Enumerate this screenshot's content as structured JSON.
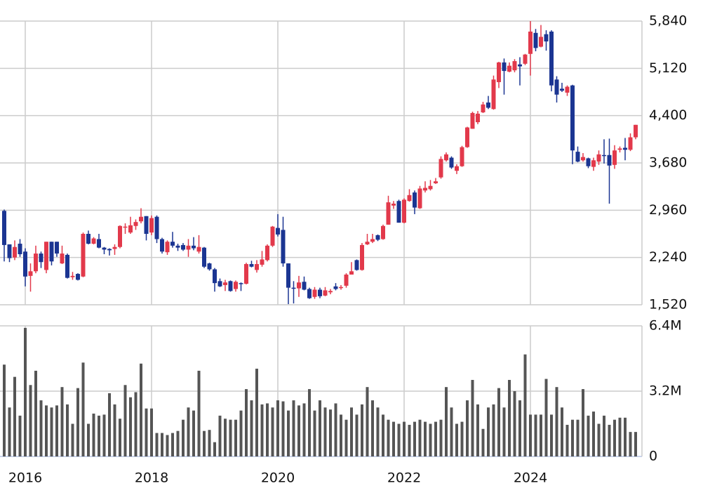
{
  "chart_data": [
    {
      "type": "candlestick",
      "open": [
        2950,
        2440,
        2240,
        2450,
        2330,
        1960,
        2030,
        2300,
        2050,
        2480,
        2480,
        2150,
        2280,
        1940,
        1990,
        1950,
        2600,
        2450,
        2520,
        2390,
        2370,
        2370,
        2400,
        2700,
        2620,
        2720,
        2790,
        2870,
        2620,
        2860,
        2520,
        2320,
        2480,
        2420,
        2430,
        2360,
        2420,
        2330,
        2390,
        2150,
        2060,
        1880,
        1820,
        1880,
        1760,
        1850,
        1840,
        2140,
        2050,
        2130,
        2200,
        2420,
        2690,
        2660,
        2150,
        1780,
        1770,
        1870,
        1760,
        1640,
        1750,
        1660,
        1710,
        1800,
        1780,
        1810,
        1980,
        2200,
        2050,
        2440,
        2480,
        2580,
        2520,
        2740,
        3030,
        3100,
        2770,
        3100,
        3230,
        2990,
        3260,
        3280,
        3370,
        3460,
        3720,
        3760,
        3560,
        3630,
        3920,
        4200,
        4300,
        4450,
        4600,
        4500,
        4910,
        5210,
        5070,
        5090,
        5180,
        5190,
        5340,
        5660,
        5450,
        5640,
        5680,
        4950,
        4810,
        4750,
        4860,
        3850,
        3720,
        3750,
        3620,
        3700,
        3800,
        3800,
        3650,
        3880,
        3910,
        3880,
        4070
      ],
      "high": [
        2970,
        2440,
        2500,
        2520,
        2380,
        2150,
        2420,
        2330,
        2480,
        2480,
        2480,
        2420,
        2300,
        2020,
        2000,
        2620,
        2650,
        2550,
        2600,
        2400,
        2380,
        2440,
        2730,
        2760,
        2860,
        2820,
        2990,
        2870,
        2880,
        2880,
        2540,
        2500,
        2630,
        2450,
        2460,
        2520,
        2550,
        2580,
        2400,
        2160,
        2080,
        1920,
        1900,
        1890,
        1890,
        1860,
        2160,
        2190,
        2200,
        2340,
        2440,
        2720,
        2900,
        2860,
        2150,
        1880,
        1960,
        1950,
        1780,
        1790,
        1780,
        1790,
        1760,
        1850,
        1820,
        2000,
        2170,
        2210,
        2460,
        2600,
        2600,
        2590,
        2740,
        3180,
        3100,
        3120,
        3140,
        3280,
        3260,
        3330,
        3400,
        3420,
        3450,
        3780,
        3840,
        3780,
        3660,
        3940,
        4230,
        4460,
        4470,
        4610,
        4700,
        5010,
        5220,
        5270,
        5210,
        5260,
        5290,
        5340,
        5840,
        5720,
        5780,
        5700,
        5700,
        5000,
        4900,
        4860,
        4870,
        3930,
        3830,
        3760,
        3760,
        3870,
        4040,
        4050,
        3950,
        3930,
        4060,
        4130,
        4260
      ],
      "low": [
        2180,
        2170,
        2200,
        2250,
        1800,
        1720,
        2000,
        2080,
        2000,
        2120,
        2250,
        2140,
        1920,
        1900,
        1890,
        1940,
        2440,
        2440,
        2380,
        2290,
        2270,
        2280,
        2380,
        2600,
        2600,
        2660,
        2760,
        2500,
        2580,
        2460,
        2300,
        2280,
        2390,
        2340,
        2340,
        2250,
        2350,
        2300,
        2080,
        2040,
        1720,
        1790,
        1730,
        1720,
        1720,
        1730,
        1830,
        2090,
        2010,
        2100,
        2180,
        2400,
        2560,
        2100,
        1530,
        1540,
        1640,
        1740,
        1610,
        1610,
        1620,
        1650,
        1680,
        1740,
        1750,
        1780,
        1980,
        2040,
        2040,
        2430,
        2460,
        2490,
        2510,
        2740,
        2980,
        2770,
        2760,
        3090,
        2900,
        2980,
        3230,
        3260,
        3360,
        3440,
        3700,
        3590,
        3510,
        3620,
        3910,
        4200,
        4270,
        4440,
        4500,
        4490,
        4820,
        4720,
        5060,
        5060,
        4860,
        5170,
        5010,
        5380,
        5440,
        5390,
        4770,
        4600,
        4760,
        4700,
        3660,
        3690,
        3700,
        3600,
        3560,
        3650,
        3670,
        3060,
        3590,
        3840,
        3720,
        3860,
        4040
      ],
      "close": [
        2430,
        2230,
        2400,
        2290,
        1950,
        2030,
        2300,
        2170,
        2480,
        2180,
        2300,
        2300,
        1930,
        1960,
        1900,
        2600,
        2450,
        2530,
        2390,
        2360,
        2350,
        2400,
        2720,
        2710,
        2730,
        2780,
        2860,
        2600,
        2840,
        2520,
        2330,
        2480,
        2420,
        2390,
        2360,
        2420,
        2380,
        2400,
        2100,
        2060,
        1850,
        1800,
        1860,
        1730,
        1870,
        1840,
        2140,
        2100,
        2140,
        2210,
        2420,
        2710,
        2590,
        2150,
        1780,
        1770,
        1860,
        1750,
        1620,
        1750,
        1650,
        1740,
        1730,
        1760,
        1790,
        1980,
        2030,
        2050,
        2430,
        2480,
        2520,
        2510,
        2720,
        3080,
        3060,
        2770,
        3120,
        3190,
        3000,
        3290,
        3300,
        3330,
        3400,
        3740,
        3810,
        3610,
        3630,
        3920,
        4220,
        4440,
        4430,
        4570,
        4520,
        4950,
        5210,
        5080,
        5160,
        5230,
        5150,
        5330,
        5680,
        5430,
        5600,
        5530,
        4860,
        4720,
        4780,
        4840,
        3870,
        3700,
        3770,
        3630,
        3720,
        3810,
        3790,
        3640,
        3870,
        3900,
        3880,
        4070,
        4260
      ],
      "up_color": "#e2394b",
      "down_color": "#1b3592",
      "ylim": [
        1520,
        5840
      ],
      "yticks": [
        {
          "value": 1520,
          "label": "1,520"
        },
        {
          "value": 2240,
          "label": "2,240"
        },
        {
          "value": 2960,
          "label": "2,960"
        },
        {
          "value": 3680,
          "label": "3,680"
        },
        {
          "value": 4400,
          "label": "4,400"
        },
        {
          "value": 5120,
          "label": "5,120"
        },
        {
          "value": 5840,
          "label": "5,840"
        }
      ],
      "grid": true
    },
    {
      "type": "bar",
      "categories": [
        null,
        null,
        null,
        null,
        "2016",
        null,
        null,
        null,
        null,
        null,
        null,
        null,
        null,
        null,
        null,
        null,
        null,
        null,
        null,
        null,
        null,
        null,
        null,
        null,
        null,
        null,
        null,
        null,
        "2018",
        null,
        null,
        null,
        null,
        null,
        null,
        null,
        null,
        null,
        null,
        null,
        null,
        null,
        null,
        null,
        null,
        null,
        null,
        null,
        null,
        null,
        null,
        null,
        "2020",
        null,
        null,
        null,
        null,
        null,
        null,
        null,
        null,
        null,
        null,
        null,
        null,
        null,
        null,
        null,
        null,
        null,
        null,
        null,
        null,
        null,
        null,
        null,
        "2022",
        null,
        null,
        null,
        null,
        null,
        null,
        null,
        null,
        null,
        null,
        null,
        null,
        null,
        null,
        null,
        null,
        null,
        null,
        null,
        null,
        null,
        null,
        null,
        "2024",
        null,
        null,
        null,
        null,
        null,
        null,
        null,
        null,
        null,
        null,
        null,
        null,
        null,
        null,
        null,
        null,
        null,
        null,
        null,
        null
      ],
      "values": [
        4500000,
        2400000,
        3900000,
        2000000,
        6300000,
        3500000,
        4200000,
        2750000,
        2500000,
        2400000,
        2500000,
        3400000,
        2550000,
        1600000,
        3350000,
        4600000,
        1600000,
        2100000,
        2000000,
        2050000,
        3100000,
        2550000,
        1850000,
        3500000,
        2900000,
        3150000,
        4550000,
        2350000,
        2350000,
        1150000,
        1150000,
        1050000,
        1150000,
        1250000,
        1800000,
        2400000,
        2250000,
        4200000,
        1250000,
        1300000,
        700000,
        2000000,
        1850000,
        1800000,
        1800000,
        2250000,
        3300000,
        2750000,
        4300000,
        2550000,
        2600000,
        2400000,
        2750000,
        2700000,
        2250000,
        2750000,
        2500000,
        2600000,
        3300000,
        2250000,
        2750000,
        2400000,
        2300000,
        2600000,
        2050000,
        1800000,
        2400000,
        2050000,
        2550000,
        3400000,
        2750000,
        2400000,
        2050000,
        1800000,
        1700000,
        1600000,
        1700000,
        1550000,
        1700000,
        1800000,
        1700000,
        1600000,
        1700000,
        1800000,
        3400000,
        2400000,
        1600000,
        1700000,
        2750000,
        3750000,
        2550000,
        1350000,
        2400000,
        2550000,
        3350000,
        2400000,
        3750000,
        3200000,
        2750000,
        5000000,
        2050000,
        2050000,
        2050000,
        3800000,
        2050000,
        3400000,
        2400000,
        1550000,
        1800000,
        1800000,
        3300000,
        2000000,
        2200000,
        1600000,
        2000000,
        1550000,
        1800000,
        1900000,
        1900000,
        1200000,
        1200000
      ],
      "color": "#555555",
      "ylim": [
        0,
        6400000
      ],
      "yticks": [
        0,
        {
          "value": 3200000,
          "label": "3.2M"
        },
        {
          "value": 6400000,
          "label": "6.4M"
        }
      ],
      "grid": true
    }
  ]
}
